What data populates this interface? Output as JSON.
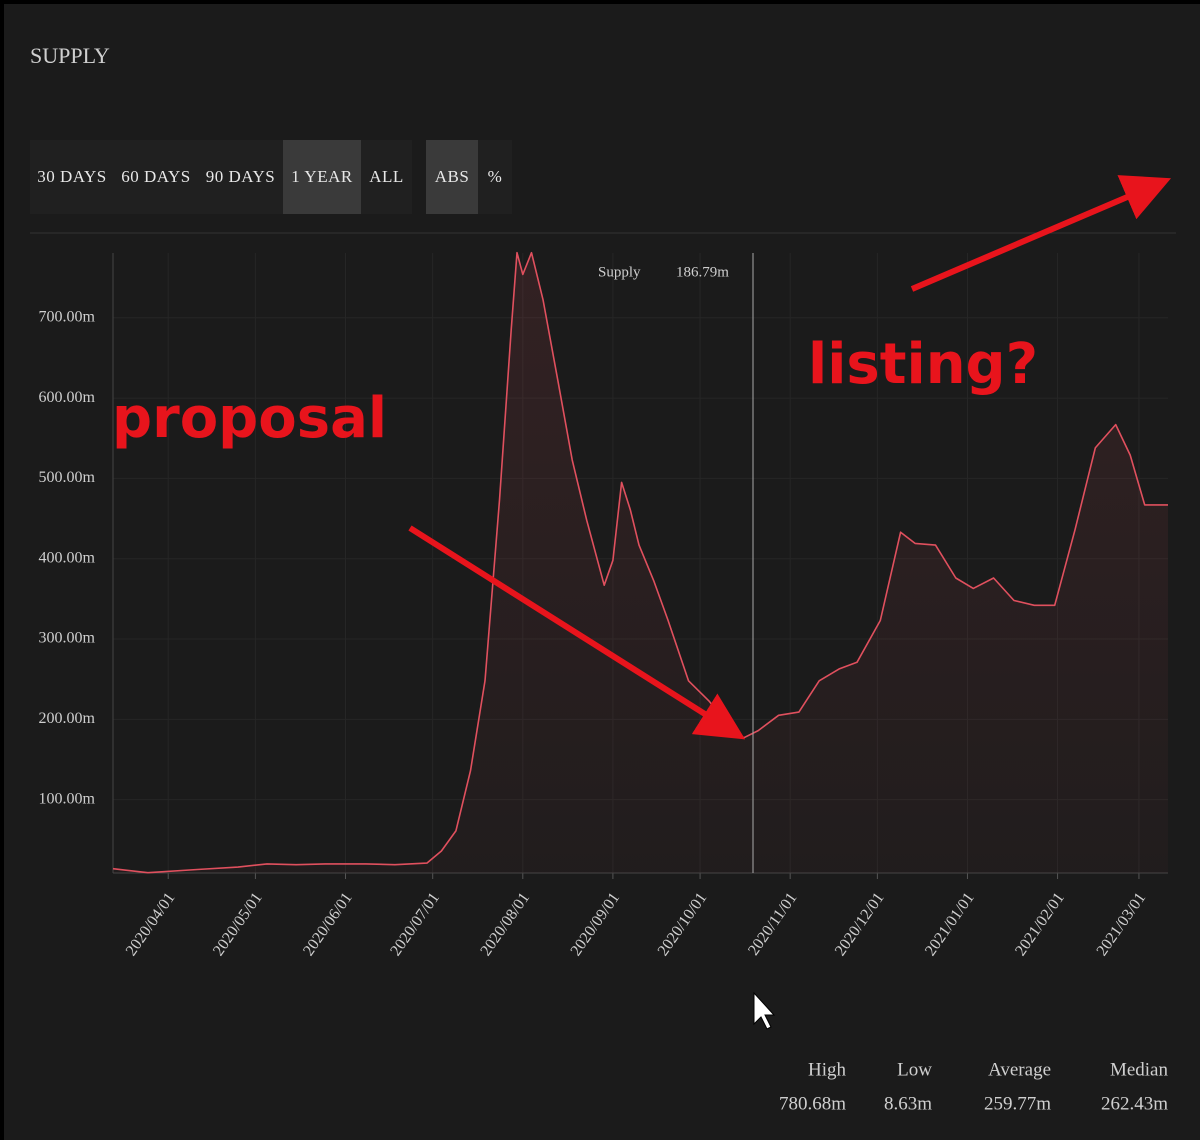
{
  "header": {
    "title": "SUPPLY"
  },
  "range_buttons": {
    "labels": [
      "30 DAYS",
      "60 DAYS",
      "90 DAYS",
      "1 YEAR",
      "ALL"
    ],
    "active": 3
  },
  "mode_buttons": {
    "labels": [
      "ABS",
      "%"
    ],
    "active": 0
  },
  "tooltip": {
    "label": "Supply",
    "value": "186.79m"
  },
  "annotations": [
    "proposal",
    "listing?"
  ],
  "stats": [
    {
      "label": "High",
      "value": "780.68m"
    },
    {
      "label": "Low",
      "value": "8.63m"
    },
    {
      "label": "Average",
      "value": "259.77m"
    },
    {
      "label": "Median",
      "value": "262.43m"
    }
  ],
  "chart_data": {
    "type": "area",
    "x": [
      "2020/03/13",
      "2020/03/25",
      "2020/04/11",
      "2020/04/25",
      "2020/05/05",
      "2020/05/15",
      "2020/05/25",
      "2020/06/08",
      "2020/06/18",
      "2020/06/29",
      "2020/07/04",
      "2020/07/09",
      "2020/07/14",
      "2020/07/19",
      "2020/07/24",
      "2020/07/28",
      "2020/07/30",
      "2020/08/01",
      "2020/08/04",
      "2020/08/08",
      "2020/08/13",
      "2020/08/18",
      "2020/08/23",
      "2020/08/29",
      "2020/09/01",
      "2020/09/04",
      "2020/09/07",
      "2020/09/10",
      "2020/09/15",
      "2020/09/20",
      "2020/09/27",
      "2020/10/04",
      "2020/10/11",
      "2020/10/16",
      "2020/10/21",
      "2020/10/28",
      "2020/11/04",
      "2020/11/11",
      "2020/11/18",
      "2020/11/24",
      "2020/12/02",
      "2020/12/09",
      "2020/12/14",
      "2020/12/21",
      "2020/12/28",
      "2021/01/03",
      "2021/01/10",
      "2021/01/17",
      "2021/01/24",
      "2021/01/31",
      "2021/02/07",
      "2021/02/14",
      "2021/02/21",
      "2021/02/26",
      "2021/03/03",
      "2021/03/11"
    ],
    "series": [
      {
        "name": "Supply",
        "color": "#e0505e",
        "values": [
          14,
          9,
          13,
          16,
          20,
          19,
          20,
          20,
          19,
          21,
          36,
          61,
          136,
          248,
          473,
          685,
          781,
          754,
          781,
          722,
          623,
          523,
          448,
          367,
          398,
          495,
          461,
          417,
          373,
          323,
          248,
          223,
          192,
          177,
          186,
          205,
          209,
          248,
          263,
          271,
          323,
          433,
          419,
          417,
          376,
          363,
          376,
          348,
          342,
          342,
          436,
          538,
          567,
          529,
          467,
          467
        ]
      }
    ],
    "xlim": [
      "2020/03/13",
      "2021/03/11"
    ],
    "xticks": [
      "2020/04/01",
      "2020/05/01",
      "2020/06/01",
      "2020/07/01",
      "2020/08/01",
      "2020/09/01",
      "2020/10/01",
      "2020/11/01",
      "2020/12/01",
      "2021/01/01",
      "2021/02/01",
      "2021/03/01"
    ],
    "ylim": [
      8.63,
      780.68
    ],
    "yticks": [
      {
        "value": 100,
        "label": "100.00m"
      },
      {
        "value": 200,
        "label": "200.00m"
      },
      {
        "value": 300,
        "label": "300.00m"
      },
      {
        "value": 400,
        "label": "400.00m"
      },
      {
        "value": 500,
        "label": "500.00m"
      },
      {
        "value": 600,
        "label": "600.00m"
      },
      {
        "value": 700,
        "label": "700.00m"
      }
    ],
    "grid": true
  }
}
